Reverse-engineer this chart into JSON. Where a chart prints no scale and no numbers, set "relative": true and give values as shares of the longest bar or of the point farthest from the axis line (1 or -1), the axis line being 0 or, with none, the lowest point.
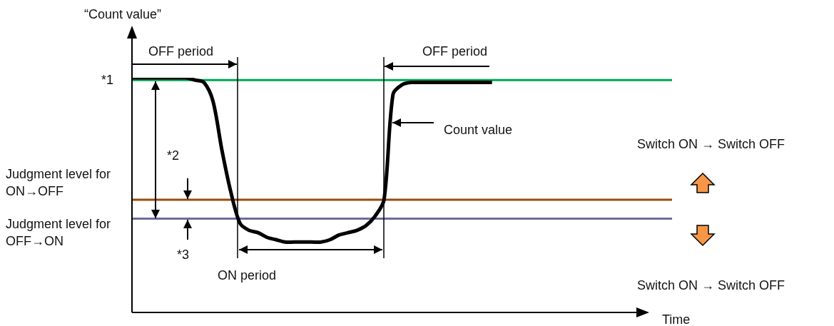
{
  "chart_data": {
    "type": "line",
    "relative": true,
    "ylabel": "“Count  value”",
    "xlabel": "Time",
    "categories": [
      null,
      null,
      null,
      null,
      null,
      null,
      null,
      null,
      null,
      null,
      null,
      null,
      null,
      null,
      null,
      null,
      null,
      null,
      null,
      null,
      null,
      null,
      null,
      null,
      null,
      null,
      null,
      null,
      null,
      null,
      null,
      null,
      null,
      null,
      null,
      null,
      null,
      null,
      null,
      null,
      null,
      null,
      null,
      null,
      null,
      null,
      null,
      null,
      null,
      null,
      null,
      null,
      null,
      null,
      null,
      null,
      null,
      null,
      null,
      null,
      null
    ],
    "series": [
      {
        "color": "#000000",
        "values": [
          1,
          1,
          1,
          1,
          1,
          1,
          1,
          0.99,
          0.98,
          0.9,
          0.69,
          0.51,
          0.38,
          0.35,
          0.34,
          0.32,
          0.31,
          0.3,
          0.3,
          0.3,
          0.3,
          0.3,
          0.31,
          0.33,
          0.34,
          0.35,
          0.37,
          0.41,
          0.48,
          0.93,
          0.97,
          0.98,
          0.98,
          0.98,
          0.98,
          0.98,
          0.98,
          0.98,
          0.98,
          0.98,
          0.98,
          null,
          null,
          null,
          null,
          null,
          null,
          null,
          null,
          null,
          null,
          null,
          null,
          null,
          null,
          null,
          null,
          null,
          null,
          null,
          null
        ]
      }
    ],
    "ref_lines": [
      {
        "axis": "y",
        "value": 0.99,
        "label": "*1",
        "color": "#00a651"
      },
      {
        "axis": "y",
        "value": 0.48,
        "label": "Judgment level for ON→OFF",
        "color": "#9c4a0b"
      },
      {
        "axis": "y",
        "value": 0.4,
        "label": "Judgment level for OFF→ON",
        "color": "#6b6b9e"
      }
    ],
    "annotations": [
      "OFF period",
      "OFF period",
      "*2",
      "*3",
      "Count value",
      "ON period",
      "Switch ON → Switch OFF",
      "Switch ON → Switch OFF"
    ],
    "marker": "none",
    "line_style": "solid"
  }
}
